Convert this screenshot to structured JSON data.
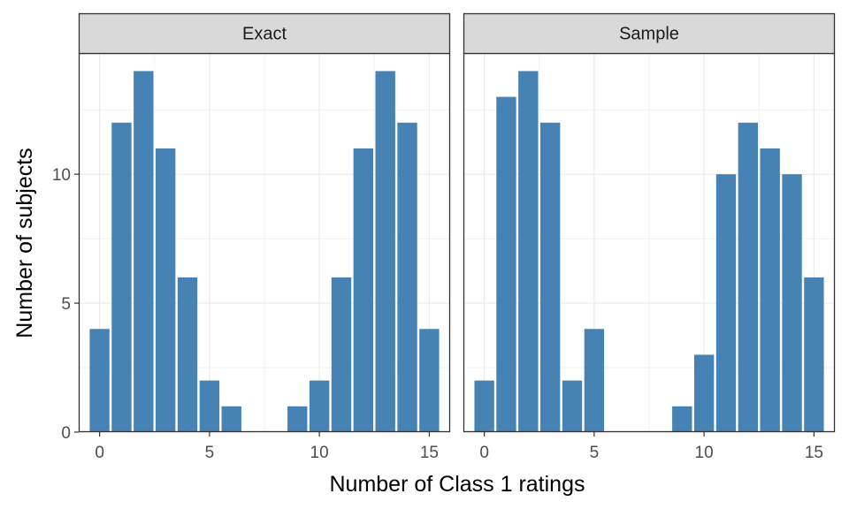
{
  "chart_data": {
    "type": "bar",
    "xlabel": "Number of Class 1 ratings",
    "ylabel": "Number of subjects",
    "xlim": [
      -0.95,
      15.95
    ],
    "ylim": [
      0,
      14.7
    ],
    "x_ticks": [
      0,
      5,
      10,
      15
    ],
    "y_ticks": [
      0,
      5,
      10
    ],
    "grid": true,
    "bar_color": "#4682B4",
    "panels": [
      {
        "title": "Exact",
        "x": [
          0,
          1,
          2,
          3,
          4,
          5,
          6,
          9,
          10,
          11,
          12,
          13,
          14,
          15
        ],
        "values": [
          4,
          12,
          14,
          11,
          6,
          2,
          1,
          1,
          2,
          6,
          11,
          14,
          12,
          4
        ]
      },
      {
        "title": "Sample",
        "x": [
          0,
          1,
          2,
          3,
          4,
          5,
          9,
          10,
          11,
          12,
          13,
          14,
          15
        ],
        "values": [
          2,
          13,
          14,
          12,
          2,
          4,
          1,
          3,
          10,
          12,
          11,
          10,
          6
        ]
      }
    ]
  }
}
